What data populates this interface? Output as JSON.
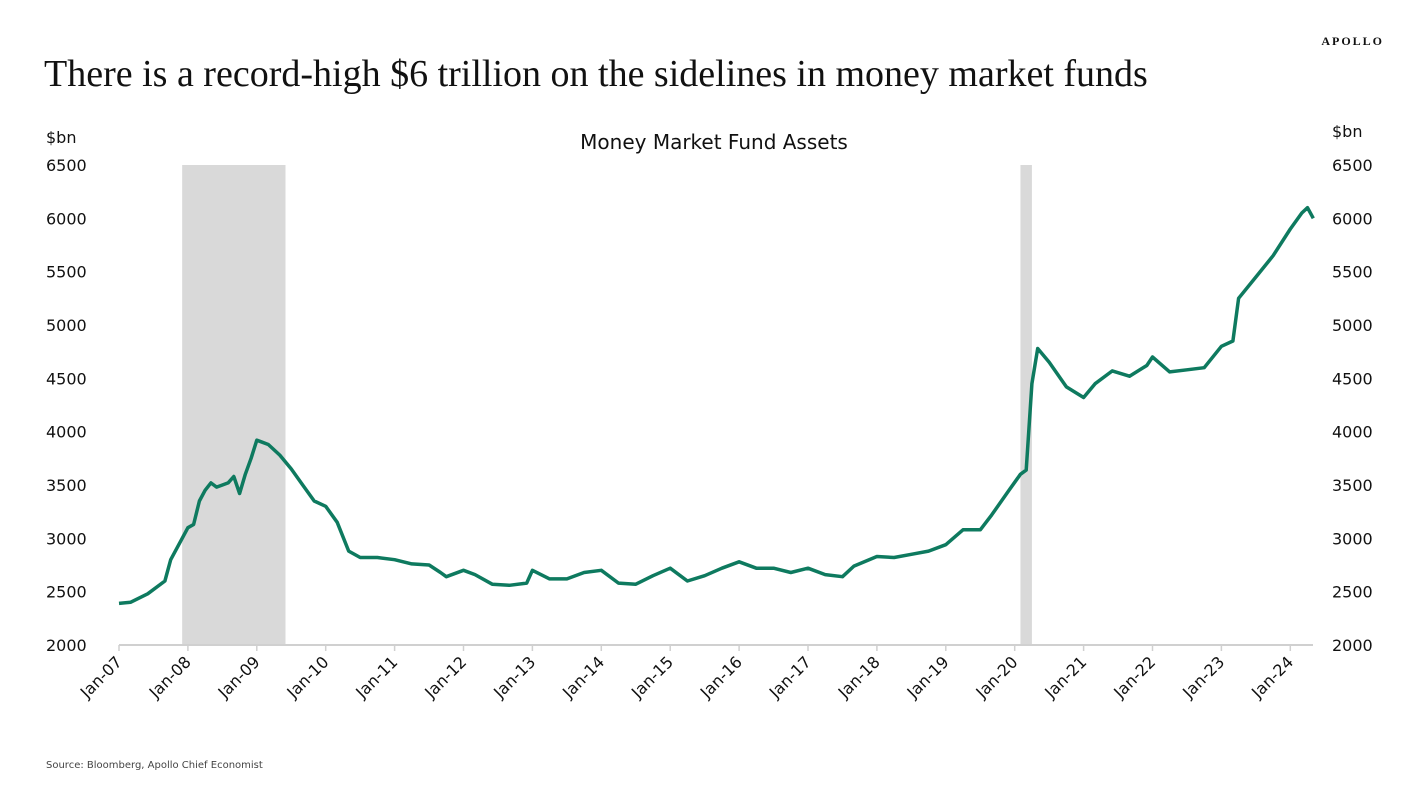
{
  "header": {
    "title": "There is a record-high $6 trillion on the sidelines in money market funds",
    "logo": "APOLLO"
  },
  "footer": {
    "source": "Source: Bloomberg, Apollo Chief Economist"
  },
  "chart_data": {
    "type": "line",
    "title": "Money Market Fund Assets",
    "ylabel_left": "$bn",
    "ylabel_right": "$bn",
    "ylim": [
      2000,
      6500
    ],
    "yticks": [
      2000,
      2500,
      3000,
      3500,
      4000,
      4500,
      5000,
      5500,
      6000,
      6500
    ],
    "xticks": [
      "Jan-07",
      "Jan-08",
      "Jan-09",
      "Jan-10",
      "Jan-11",
      "Jan-12",
      "Jan-13",
      "Jan-14",
      "Jan-15",
      "Jan-16",
      "Jan-17",
      "Jan-18",
      "Jan-19",
      "Jan-20",
      "Jan-21",
      "Jan-22",
      "Jan-23",
      "Jan-24"
    ],
    "grid": false,
    "line_color": "#0e7a5f",
    "recession_color": "#d9d9d9",
    "recessions": [
      [
        "2007-12",
        "2009-06"
      ],
      [
        "2020-02",
        "2020-04"
      ]
    ],
    "series": [
      {
        "points": [
          [
            "2007-01",
            2390
          ],
          [
            "2007-03",
            2400
          ],
          [
            "2007-06",
            2480
          ],
          [
            "2007-09",
            2600
          ],
          [
            "2007-10",
            2800
          ],
          [
            "2007-12",
            3000
          ],
          [
            "2008-01",
            3100
          ],
          [
            "2008-02",
            3130
          ],
          [
            "2008-03",
            3350
          ],
          [
            "2008-04",
            3450
          ],
          [
            "2008-05",
            3520
          ],
          [
            "2008-06",
            3480
          ],
          [
            "2008-07",
            3500
          ],
          [
            "2008-08",
            3520
          ],
          [
            "2008-09",
            3580
          ],
          [
            "2008-10",
            3420
          ],
          [
            "2008-11",
            3600
          ],
          [
            "2008-12",
            3750
          ],
          [
            "2009-01",
            3920
          ],
          [
            "2009-02",
            3900
          ],
          [
            "2009-03",
            3880
          ],
          [
            "2009-05",
            3780
          ],
          [
            "2009-07",
            3650
          ],
          [
            "2009-09",
            3500
          ],
          [
            "2009-11",
            3350
          ],
          [
            "2010-01",
            3300
          ],
          [
            "2010-03",
            3150
          ],
          [
            "2010-05",
            2880
          ],
          [
            "2010-07",
            2820
          ],
          [
            "2010-10",
            2820
          ],
          [
            "2011-01",
            2800
          ],
          [
            "2011-04",
            2760
          ],
          [
            "2011-07",
            2750
          ],
          [
            "2011-09",
            2680
          ],
          [
            "2011-10",
            2640
          ],
          [
            "2012-01",
            2700
          ],
          [
            "2012-03",
            2660
          ],
          [
            "2012-06",
            2570
          ],
          [
            "2012-09",
            2560
          ],
          [
            "2012-12",
            2580
          ],
          [
            "2013-01",
            2700
          ],
          [
            "2013-04",
            2620
          ],
          [
            "2013-07",
            2620
          ],
          [
            "2013-10",
            2680
          ],
          [
            "2014-01",
            2700
          ],
          [
            "2014-04",
            2580
          ],
          [
            "2014-07",
            2570
          ],
          [
            "2014-10",
            2650
          ],
          [
            "2015-01",
            2720
          ],
          [
            "2015-04",
            2600
          ],
          [
            "2015-07",
            2650
          ],
          [
            "2015-10",
            2720
          ],
          [
            "2016-01",
            2780
          ],
          [
            "2016-04",
            2720
          ],
          [
            "2016-07",
            2720
          ],
          [
            "2016-10",
            2680
          ],
          [
            "2017-01",
            2720
          ],
          [
            "2017-04",
            2660
          ],
          [
            "2017-07",
            2640
          ],
          [
            "2017-09",
            2740
          ],
          [
            "2018-01",
            2830
          ],
          [
            "2018-04",
            2820
          ],
          [
            "2018-07",
            2850
          ],
          [
            "2018-10",
            2880
          ],
          [
            "2019-01",
            2940
          ],
          [
            "2019-04",
            3080
          ],
          [
            "2019-07",
            3080
          ],
          [
            "2019-09",
            3220
          ],
          [
            "2019-12",
            3450
          ],
          [
            "2020-02",
            3600
          ],
          [
            "2020-03",
            3640
          ],
          [
            "2020-04",
            4450
          ],
          [
            "2020-05",
            4780
          ],
          [
            "2020-07",
            4650
          ],
          [
            "2020-10",
            4420
          ],
          [
            "2021-01",
            4320
          ],
          [
            "2021-03",
            4450
          ],
          [
            "2021-06",
            4570
          ],
          [
            "2021-09",
            4520
          ],
          [
            "2021-12",
            4620
          ],
          [
            "2022-01",
            4700
          ],
          [
            "2022-04",
            4560
          ],
          [
            "2022-07",
            4580
          ],
          [
            "2022-10",
            4600
          ],
          [
            "2023-01",
            4800
          ],
          [
            "2023-03",
            4850
          ],
          [
            "2023-04",
            5250
          ],
          [
            "2023-07",
            5450
          ],
          [
            "2023-10",
            5650
          ],
          [
            "2024-01",
            5900
          ],
          [
            "2024-03",
            6050
          ],
          [
            "2024-04",
            6100
          ],
          [
            "2024-05",
            6000
          ]
        ]
      }
    ]
  }
}
